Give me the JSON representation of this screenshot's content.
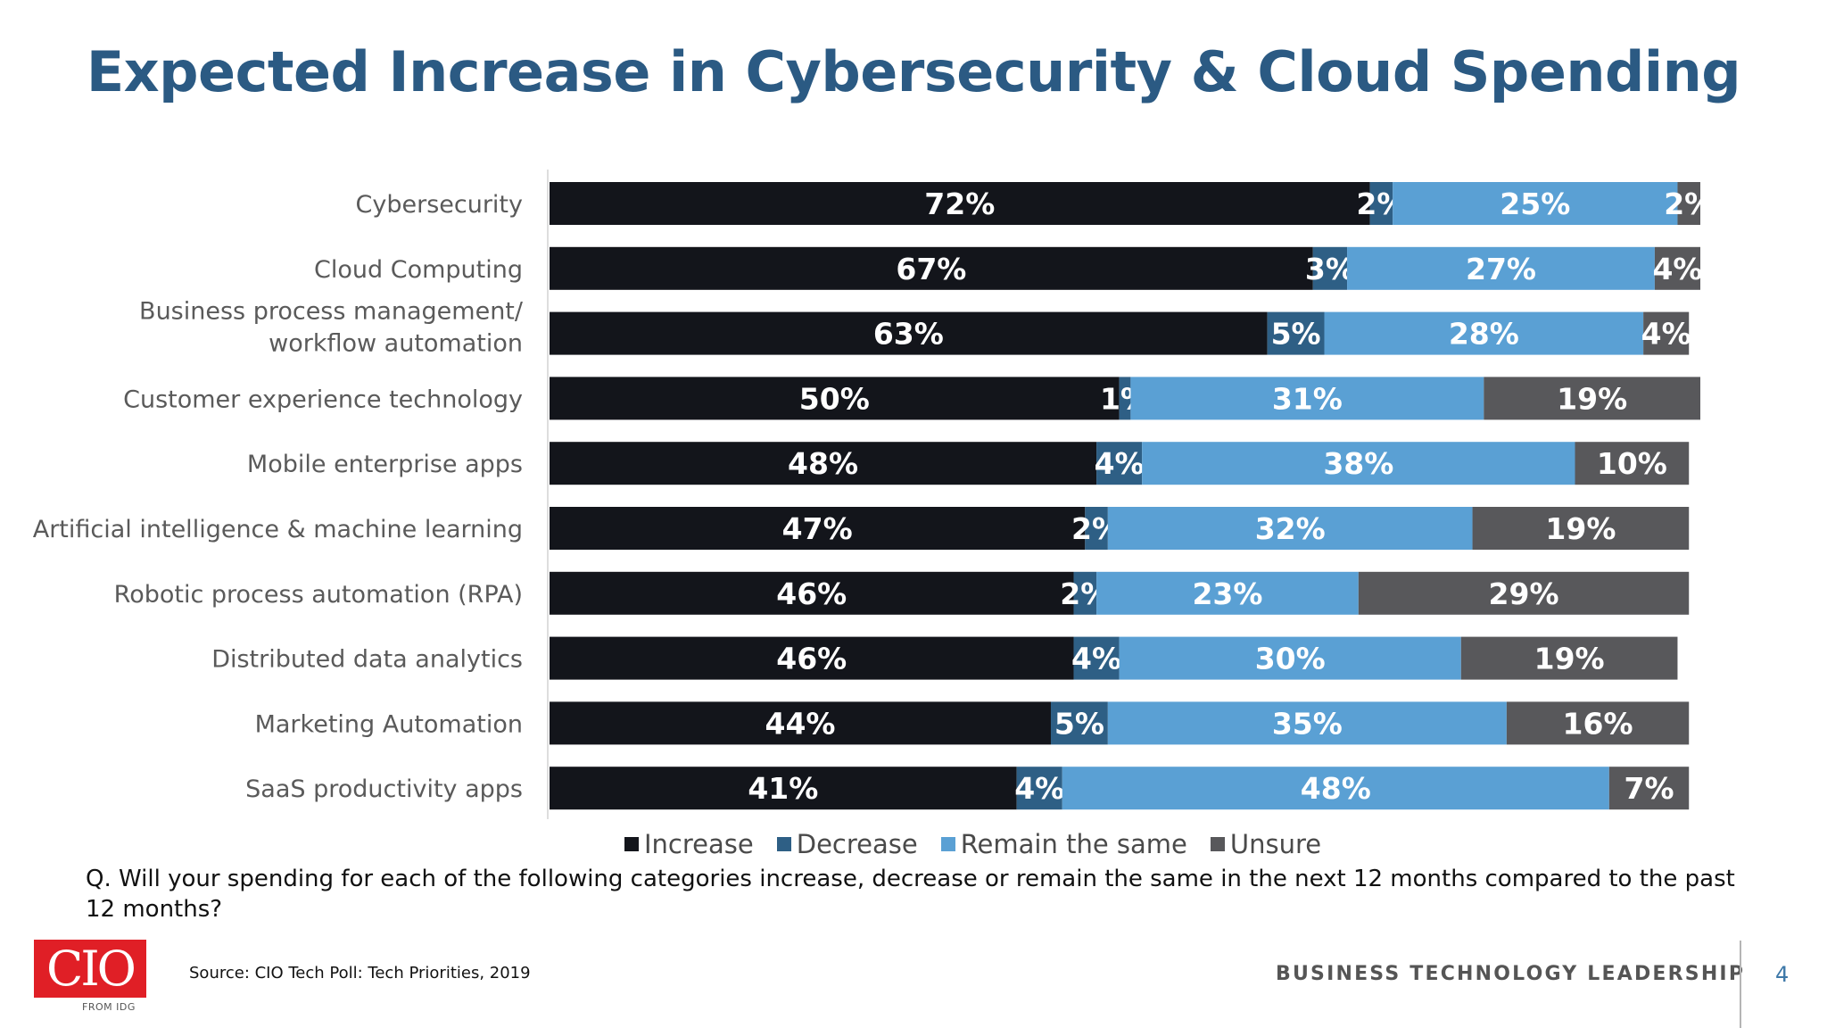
{
  "slide": {
    "title": "Expected Increase in Cybersecurity & Cloud Spending",
    "question": "Q. Will your spending for each of the following categories increase, decrease or remain the same in the next 12 months compared to the past 12 months?",
    "source": "Source: CIO Tech Poll: Tech Priorities, 2019",
    "footer_tag": "BUSINESS TECHNOLOGY LEADERSHIP",
    "page_number": "4",
    "logo": {
      "text": "CIO",
      "subtext": "FROM IDG",
      "color": "#e01f26"
    }
  },
  "chart_data": {
    "type": "bar",
    "orientation": "horizontal",
    "stacked": true,
    "title": "Expected Increase in Cybersecurity & Cloud Spending",
    "categories": [
      "Cybersecurity",
      "Cloud Computing",
      "Business process management/ workflow automation",
      "Customer experience technology",
      "Mobile enterprise apps",
      "Artificial intelligence & machine learning",
      "Robotic process automation (RPA)",
      "Distributed data analytics",
      "Marketing Automation",
      "SaaS productivity apps"
    ],
    "category_lines": [
      [
        "Cybersecurity"
      ],
      [
        "Cloud Computing"
      ],
      [
        "Business process management/",
        "workflow automation"
      ],
      [
        "Customer experience technology"
      ],
      [
        "Mobile enterprise apps"
      ],
      [
        "Artificial intelligence & machine learning"
      ],
      [
        "Robotic process automation (RPA)"
      ],
      [
        "Distributed data analytics"
      ],
      [
        "Marketing Automation"
      ],
      [
        "SaaS productivity apps"
      ]
    ],
    "series": [
      {
        "name": "Increase",
        "color": "#13151b",
        "values": [
          72,
          67,
          63,
          50,
          48,
          47,
          46,
          46,
          44,
          41
        ]
      },
      {
        "name": "Decrease",
        "color": "#2e5f85",
        "values": [
          2,
          3,
          5,
          1,
          4,
          2,
          2,
          4,
          5,
          4
        ]
      },
      {
        "name": "Remain the same",
        "color": "#5aa0d4",
        "values": [
          25,
          27,
          28,
          31,
          38,
          32,
          23,
          30,
          35,
          48
        ]
      },
      {
        "name": "Unsure",
        "color": "#58585b",
        "values": [
          2,
          4,
          4,
          19,
          10,
          19,
          29,
          19,
          16,
          7
        ]
      }
    ],
    "value_suffix": "%",
    "xlim": [
      0,
      101
    ],
    "legend_position": "bottom",
    "grid": false
  }
}
